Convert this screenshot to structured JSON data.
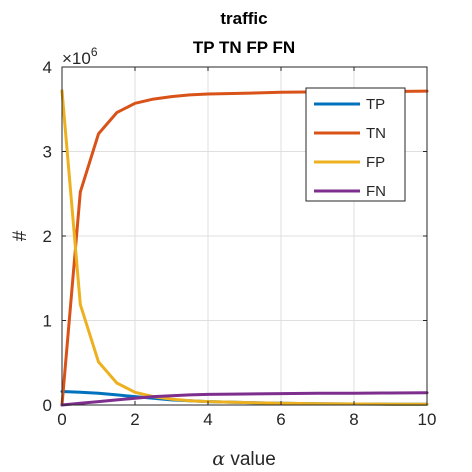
{
  "chart_data": {
    "type": "line",
    "title": "traffic",
    "subtitle": "TP TN FP FN",
    "xlabel_prefix": "α",
    "xlabel_suffix": " value",
    "ylabel": "#",
    "y_exponent_label": "×10",
    "y_exponent_power": "6",
    "xlim": [
      0,
      10
    ],
    "ylim": [
      0,
      4
    ],
    "x_ticks": [
      0,
      2,
      4,
      6,
      8,
      10
    ],
    "y_ticks": [
      0,
      1,
      2,
      3,
      4
    ],
    "grid": true,
    "legend_position": "top-right",
    "x": [
      0,
      0.5,
      1,
      1.5,
      2,
      2.5,
      3,
      3.5,
      4,
      5,
      6,
      7,
      8,
      9,
      10
    ],
    "series": [
      {
        "name": "TP",
        "color": "#0072BD",
        "values": [
          0.16,
          0.15,
          0.14,
          0.12,
          0.1,
          0.08,
          0.06,
          0.05,
          0.04,
          0.03,
          0.02,
          0.015,
          0.012,
          0.01,
          0.008
        ]
      },
      {
        "name": "TN",
        "color": "#D95319",
        "values": [
          0,
          2.52,
          3.21,
          3.46,
          3.57,
          3.62,
          3.65,
          3.67,
          3.68,
          3.69,
          3.7,
          3.705,
          3.71,
          3.71,
          3.715
        ]
      },
      {
        "name": "FP",
        "color": "#EDB120",
        "values": [
          3.72,
          1.19,
          0.51,
          0.26,
          0.15,
          0.1,
          0.07,
          0.05,
          0.04,
          0.03,
          0.02,
          0.015,
          0.012,
          0.01,
          0.008
        ]
      },
      {
        "name": "FN",
        "color": "#7E2F8E",
        "values": [
          0,
          0.02,
          0.04,
          0.06,
          0.08,
          0.1,
          0.11,
          0.12,
          0.125,
          0.13,
          0.135,
          0.138,
          0.14,
          0.142,
          0.145
        ]
      }
    ]
  }
}
